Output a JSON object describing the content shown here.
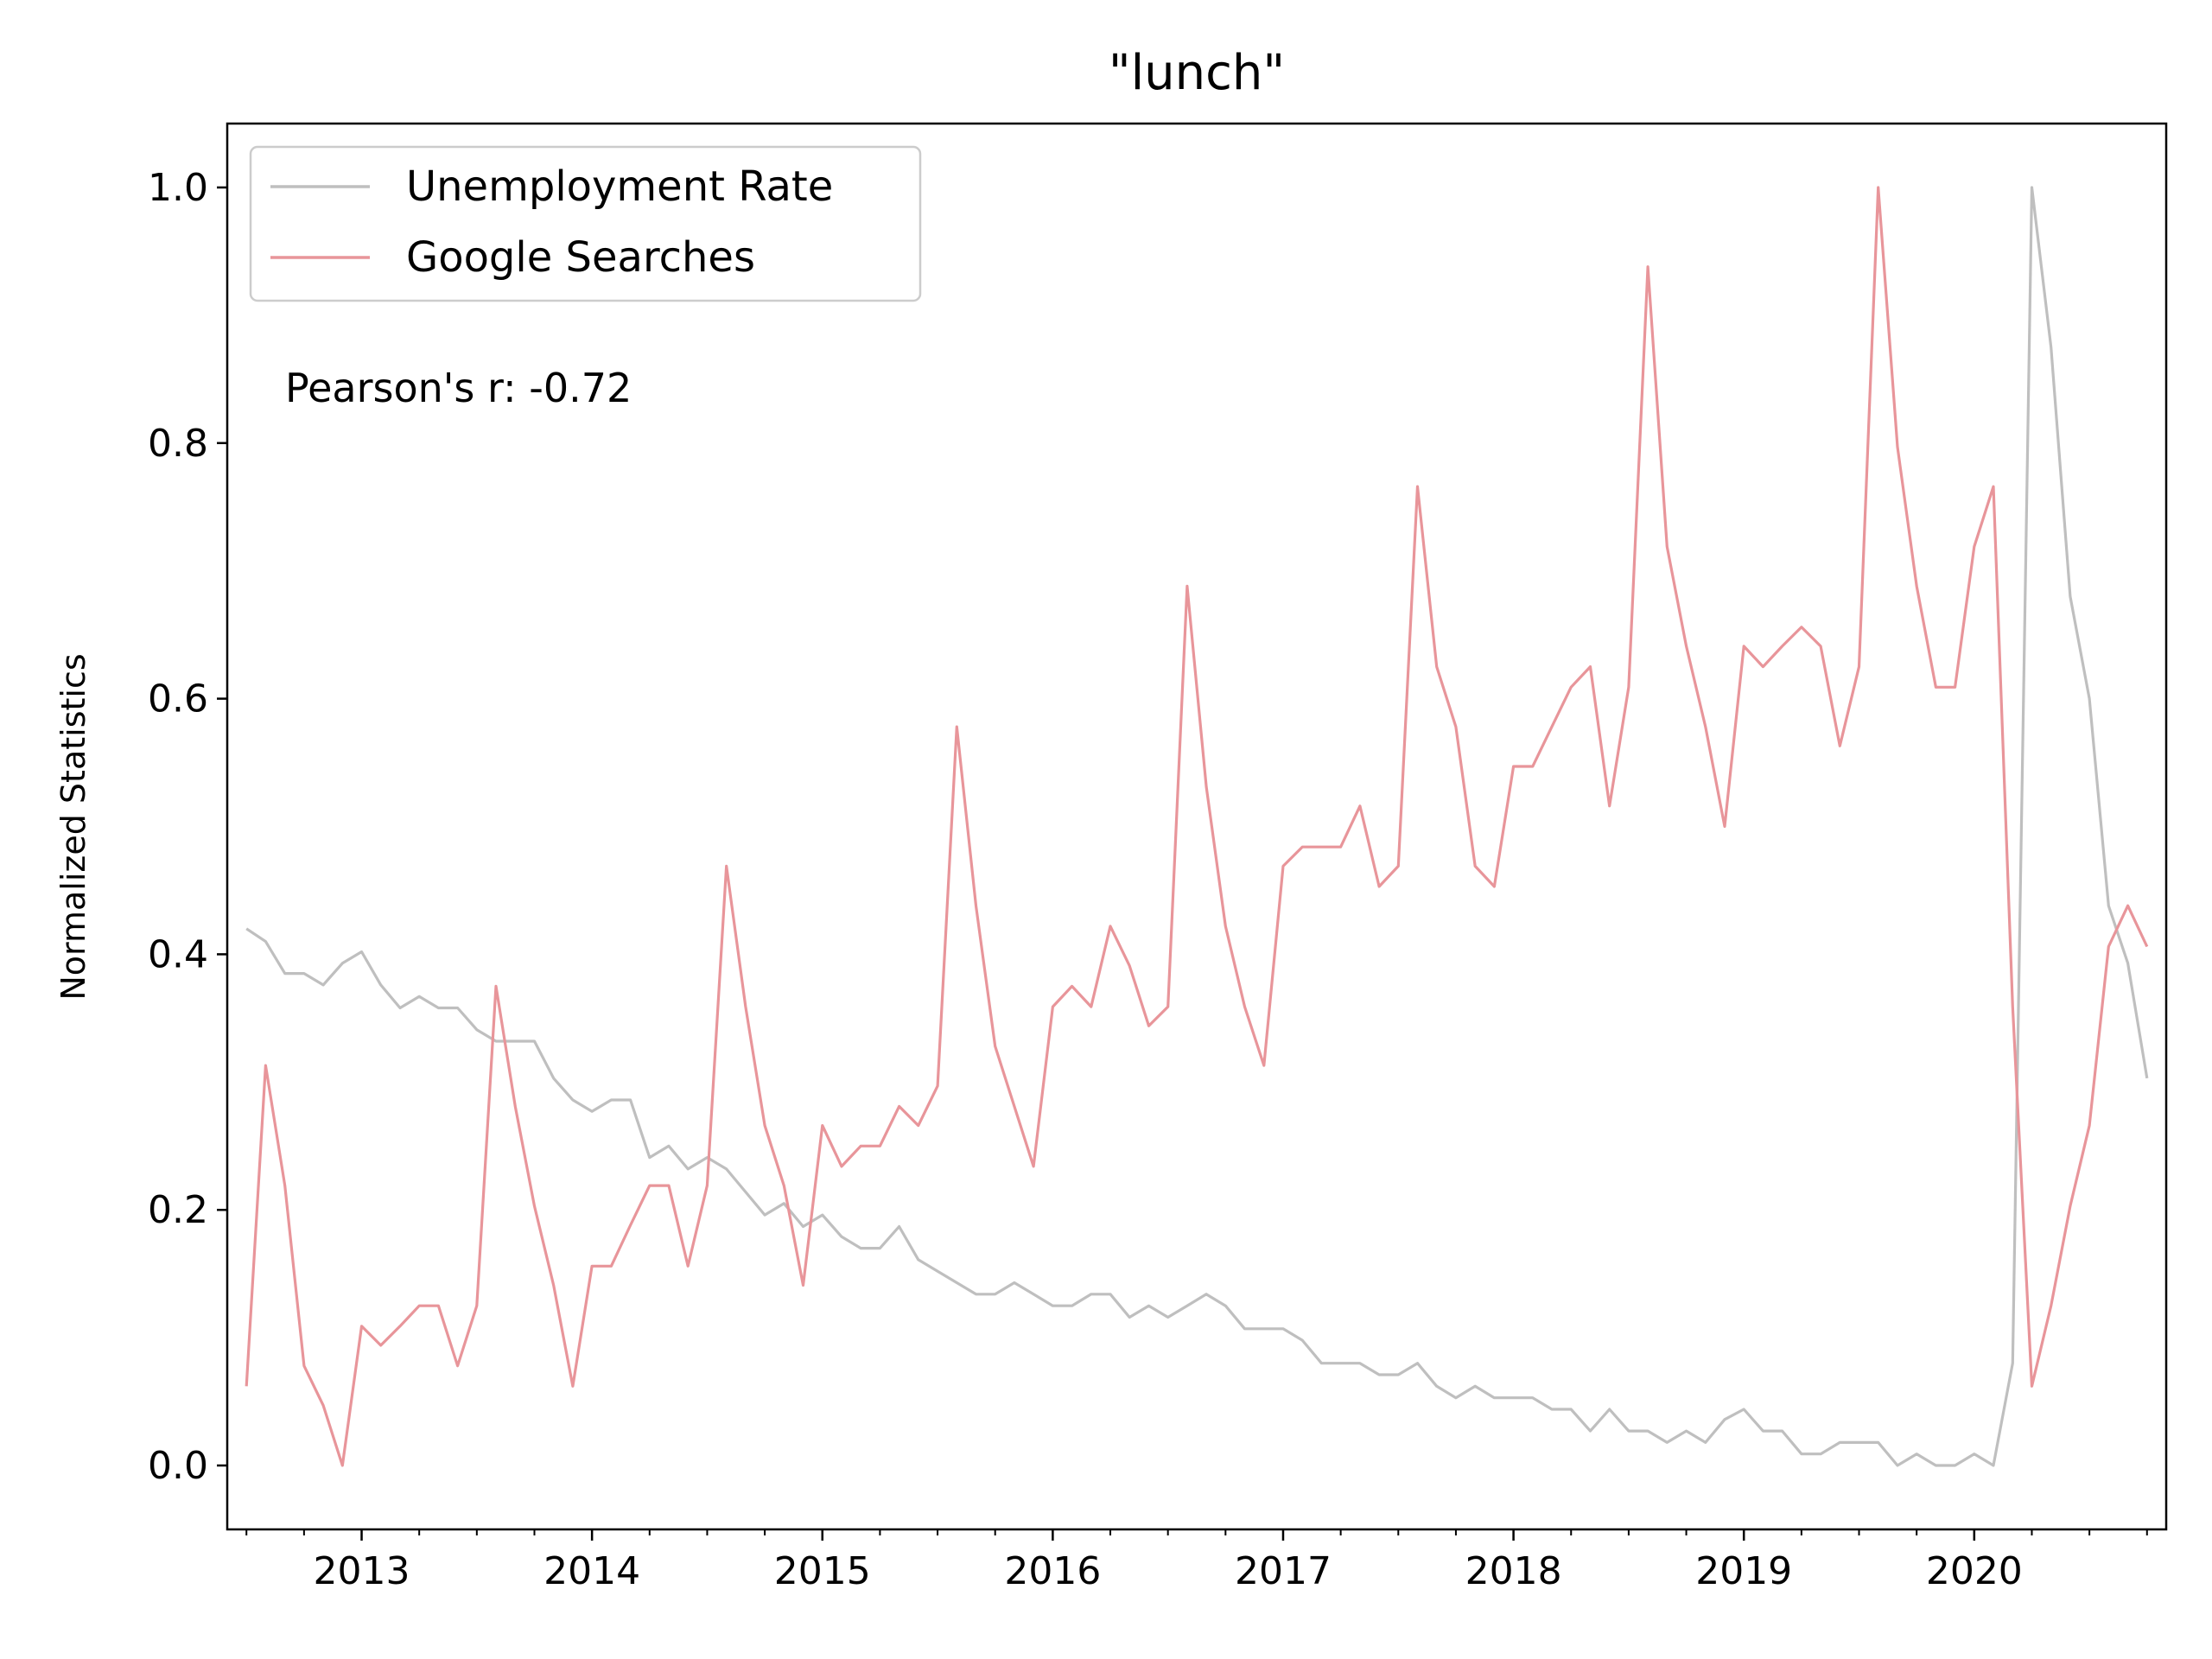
{
  "chart_data": {
    "type": "line",
    "title": "\"lunch\"",
    "xlabel": "",
    "ylabel": "Normalized Statistics",
    "annotation": "Pearson's r: -0.72",
    "x_start": "2012-07",
    "x_end": "2020-10",
    "xlim": [
      "2012-06",
      "2020-11"
    ],
    "ylim": [
      -0.05,
      1.05
    ],
    "yticks": [
      0.0,
      0.2,
      0.4,
      0.6,
      0.8,
      1.0
    ],
    "ytick_labels": [
      "0.0",
      "0.2",
      "0.4",
      "0.6",
      "0.8",
      "1.0"
    ],
    "xtick_labels": [
      "2013",
      "2014",
      "2015",
      "2016",
      "2017",
      "2018",
      "2019",
      "2020"
    ],
    "grid": false,
    "legend_position": "top-left",
    "series": [
      {
        "name": "Unemployment Rate",
        "color": "#bfbfbf",
        "values": [
          0.42,
          0.41,
          0.385,
          0.385,
          0.376,
          0.393,
          0.402,
          0.376,
          0.358,
          0.367,
          0.358,
          0.358,
          0.341,
          0.332,
          0.332,
          0.332,
          0.303,
          0.286,
          0.277,
          0.286,
          0.286,
          0.241,
          0.25,
          0.232,
          0.241,
          0.232,
          0.214,
          0.196,
          0.205,
          0.187,
          0.196,
          0.179,
          0.17,
          0.17,
          0.187,
          0.161,
          0.152,
          0.143,
          0.134,
          0.134,
          0.143,
          0.134,
          0.125,
          0.125,
          0.134,
          0.134,
          0.116,
          0.125,
          0.116,
          0.125,
          0.134,
          0.125,
          0.107,
          0.107,
          0.107,
          0.098,
          0.08,
          0.08,
          0.08,
          0.071,
          0.071,
          0.08,
          0.062,
          0.053,
          0.062,
          0.053,
          0.053,
          0.053,
          0.044,
          0.044,
          0.027,
          0.044,
          0.027,
          0.027,
          0.018,
          0.027,
          0.018,
          0.036,
          0.044,
          0.027,
          0.027,
          0.009,
          0.009,
          0.018,
          0.018,
          0.018,
          0.0,
          0.009,
          0.0,
          0.0,
          0.009,
          0.0,
          0.08,
          1.0,
          0.875,
          0.68,
          0.6,
          0.438,
          0.393,
          0.303
        ]
      },
      {
        "name": "Google Searches",
        "color": "#e8959a",
        "values": [
          0.062,
          0.313,
          0.219,
          0.078,
          0.047,
          0.0,
          0.109,
          0.094,
          0.109,
          0.125,
          0.125,
          0.078,
          0.125,
          0.375,
          0.281,
          0.203,
          0.141,
          0.062,
          0.156,
          0.156,
          0.188,
          0.219,
          0.219,
          0.156,
          0.219,
          0.469,
          0.359,
          0.266,
          0.219,
          0.141,
          0.266,
          0.234,
          0.25,
          0.25,
          0.281,
          0.266,
          0.297,
          0.578,
          0.438,
          0.328,
          0.281,
          0.234,
          0.359,
          0.375,
          0.359,
          0.422,
          0.391,
          0.344,
          0.359,
          0.688,
          0.531,
          0.422,
          0.359,
          0.313,
          0.469,
          0.484,
          0.484,
          0.484,
          0.516,
          0.453,
          0.469,
          0.766,
          0.625,
          0.578,
          0.469,
          0.453,
          0.547,
          0.547,
          0.578,
          0.609,
          0.625,
          0.516,
          0.609,
          0.938,
          0.719,
          0.641,
          0.578,
          0.5,
          0.641,
          0.625,
          0.641,
          0.656,
          0.641,
          0.563,
          0.625,
          1.0,
          0.797,
          0.688,
          0.609,
          0.609,
          0.719,
          0.766,
          0.359,
          0.062,
          0.125,
          0.203,
          0.266,
          0.406,
          0.438,
          0.406
        ]
      }
    ]
  }
}
